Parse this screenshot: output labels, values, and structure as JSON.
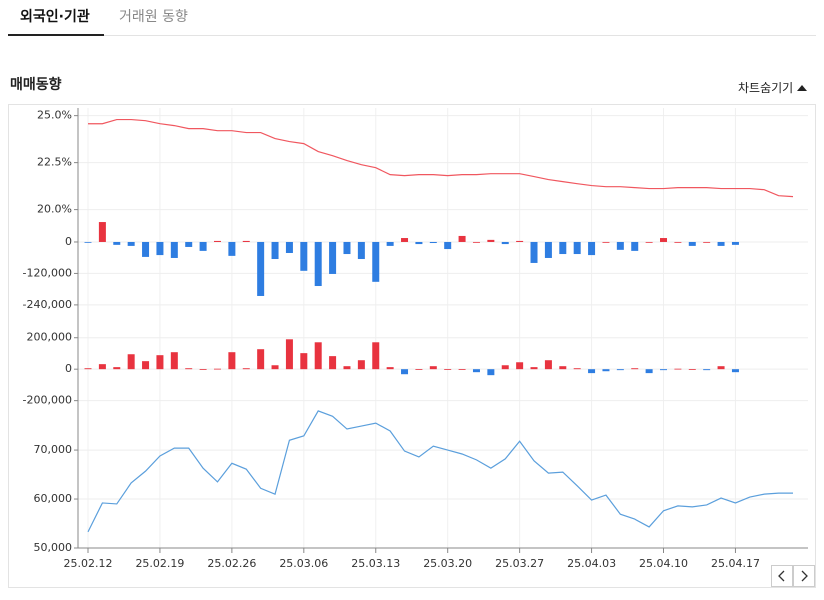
{
  "tabs": [
    "외국인·기관",
    "거래원 동향"
  ],
  "section_title": "매매동향",
  "toggle": "차트숨기기",
  "chart_data": {
    "type": "multi-panel",
    "categories": [
      "25.02.12",
      null,
      null,
      null,
      null,
      "25.02.19",
      null,
      null,
      null,
      null,
      "25.02.26",
      null,
      null,
      null,
      null,
      "25.03.06",
      null,
      null,
      null,
      null,
      "25.03.13",
      null,
      null,
      null,
      null,
      "25.03.20",
      null,
      null,
      null,
      null,
      "25.03.27",
      null,
      null,
      null,
      null,
      "25.04.03",
      null,
      null,
      null,
      null,
      "25.04.10",
      null,
      null,
      null,
      null,
      "25.04.17",
      null,
      null,
      null,
      null
    ],
    "panels": [
      {
        "type": "line",
        "color": "#f0575f",
        "ylim": [
          19.5,
          25.3
        ],
        "yticks": [
          {
            "value": 25,
            "label": "25.0%"
          },
          {
            "value": 22.5,
            "label": "22.5%"
          },
          {
            "value": 20,
            "label": "20.0%"
          }
        ],
        "values": [
          24.57,
          24.57,
          24.79,
          24.79,
          24.73,
          24.57,
          24.47,
          24.31,
          24.31,
          24.2,
          24.2,
          24.1,
          24.1,
          23.78,
          23.62,
          23.51,
          23.09,
          22.87,
          22.61,
          22.39,
          22.23,
          21.86,
          21.81,
          21.86,
          21.86,
          21.81,
          21.86,
          21.86,
          21.91,
          21.91,
          21.91,
          21.76,
          21.6,
          21.49,
          21.38,
          21.28,
          21.22,
          21.22,
          21.17,
          21.12,
          21.12,
          21.17,
          21.17,
          21.17,
          21.12,
          21.12,
          21.12,
          21.06,
          20.74,
          20.69
        ]
      },
      {
        "type": "bar",
        "pos_color": "#e8333f",
        "neg_color": "#2e7de1",
        "ylim": [
          -290000,
          80000
        ],
        "yticks": [
          0,
          {
            "value": -120000,
            "label": "-120,000"
          },
          {
            "value": -240000,
            "label": "-240,000"
          }
        ],
        "values": [
          -3000,
          76000,
          -11000,
          -15000,
          -57000,
          -50000,
          -61000,
          -19000,
          -34000,
          4000,
          -53000,
          4000,
          -206000,
          -65000,
          -42000,
          -110000,
          -168000,
          -122000,
          -46000,
          -65000,
          -152000,
          -15000,
          15000,
          -8000,
          -4000,
          -27000,
          23000,
          0,
          8000,
          -8000,
          4000,
          -80000,
          -61000,
          -46000,
          -46000,
          -50000,
          0,
          -30000,
          -34000,
          0,
          15000,
          0,
          -15000,
          0,
          -15000,
          -11000,
          null,
          null,
          null,
          null
        ]
      },
      {
        "type": "bar",
        "pos_color": "#e8333f",
        "neg_color": "#2e7de1",
        "ylim": [
          -215000,
          300000
        ],
        "yticks": [
          {
            "value": 200000,
            "label": "200,000"
          },
          0,
          {
            "value": -200000,
            "label": "-200,000"
          }
        ],
        "values": [
          6000,
          32000,
          13000,
          95000,
          51000,
          89000,
          108000,
          6000,
          0,
          3000,
          108000,
          6000,
          127000,
          25000,
          190000,
          102000,
          171000,
          83000,
          19000,
          57000,
          171000,
          13000,
          -32000,
          0,
          19000,
          0,
          0,
          -19000,
          -38000,
          25000,
          44000,
          13000,
          57000,
          19000,
          6000,
          -25000,
          -13000,
          -6000,
          6000,
          -25000,
          -6000,
          3000,
          0,
          -6000,
          19000,
          -19000,
          null,
          null,
          null,
          null
        ]
      },
      {
        "type": "line",
        "color": "#5b9fdc",
        "ylim": [
          50000,
          79000
        ],
        "yticks": [
          {
            "value": 70000,
            "label": "70,000"
          },
          {
            "value": 60000,
            "label": "60,000"
          },
          {
            "value": 50000,
            "label": "50,000"
          }
        ],
        "values": [
          53300,
          59200,
          59000,
          63300,
          65700,
          68800,
          70400,
          70400,
          66300,
          63500,
          67300,
          66100,
          62200,
          61000,
          72000,
          72900,
          78000,
          76900,
          74300,
          74900,
          75500,
          73900,
          69800,
          68600,
          70800,
          70000,
          69200,
          68000,
          66300,
          68200,
          71800,
          67800,
          65300,
          65500,
          62700,
          59800,
          60800,
          56900,
          55900,
          54300,
          57600,
          58600,
          58400,
          58800,
          60200,
          59200,
          60400,
          61000,
          61200,
          61200
        ]
      }
    ]
  }
}
